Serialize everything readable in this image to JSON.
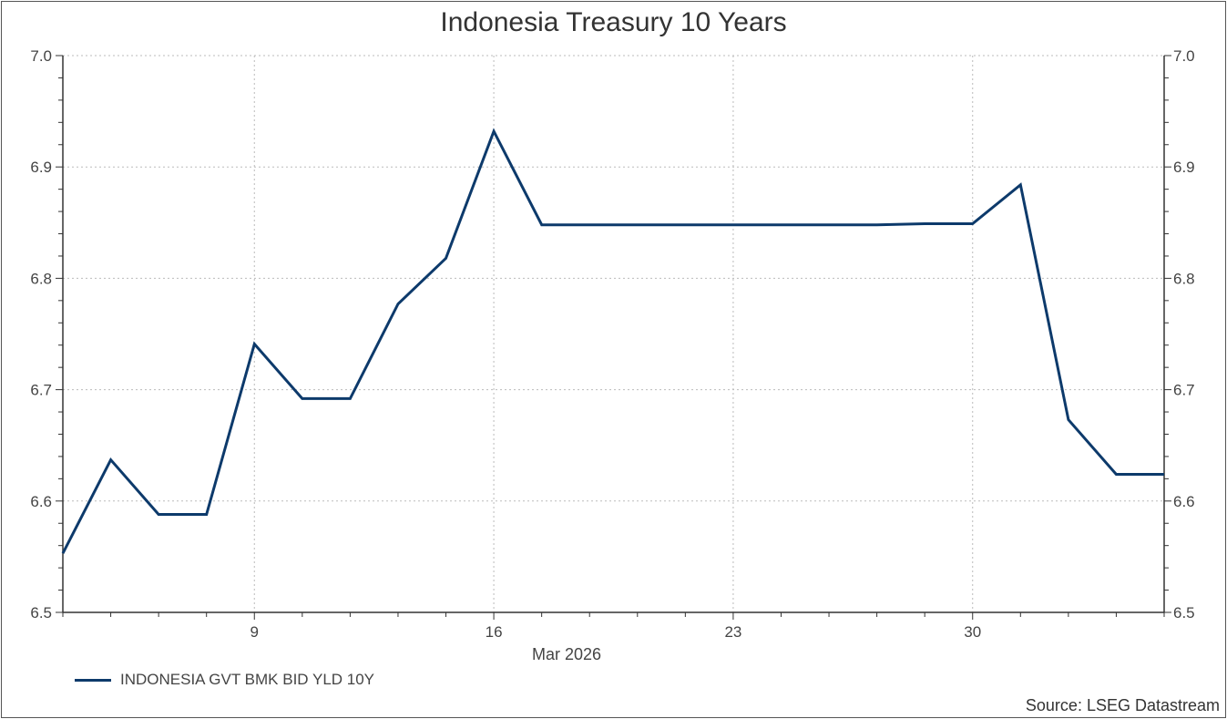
{
  "chart_data": {
    "type": "line",
    "title": "Indonesia Treasury 10 Years",
    "xlabel": "Mar 2026",
    "ylabel": "",
    "source": "Source: LSEG Datastream",
    "ylim": [
      6.5,
      7.0
    ],
    "yticks": [
      "6.5",
      "6.6",
      "6.7",
      "6.8",
      "6.9",
      "7.0"
    ],
    "xtick_labels": [
      {
        "date": "2026-03-09",
        "label": "9"
      },
      {
        "date": "2026-03-16",
        "label": "16"
      },
      {
        "date": "2026-03-23",
        "label": "23"
      },
      {
        "date": "2026-03-30",
        "label": "30"
      }
    ],
    "grid": true,
    "legend_position": "bottom-left",
    "line_color": "#0d3a6b",
    "series": [
      {
        "name": "INDONESIA GVT BMK BID YLD 10Y",
        "x": [
          "2026-03-03",
          "2026-03-04",
          "2026-03-05",
          "2026-03-06",
          "2026-03-09",
          "2026-03-10",
          "2026-03-11",
          "2026-03-12",
          "2026-03-13",
          "2026-03-16",
          "2026-03-17",
          "2026-03-18",
          "2026-03-19",
          "2026-03-20",
          "2026-03-23",
          "2026-03-24",
          "2026-03-25",
          "2026-03-26",
          "2026-03-27",
          "2026-03-30",
          "2026-03-31",
          "2026-04-01",
          "2026-04-02",
          "2026-04-03"
        ],
        "values": [
          6.553,
          6.637,
          6.588,
          6.588,
          6.741,
          6.692,
          6.692,
          6.777,
          6.818,
          6.932,
          6.848,
          6.848,
          6.848,
          6.848,
          6.848,
          6.848,
          6.848,
          6.848,
          6.849,
          6.849,
          6.884,
          6.673,
          6.624,
          6.624
        ]
      }
    ]
  }
}
